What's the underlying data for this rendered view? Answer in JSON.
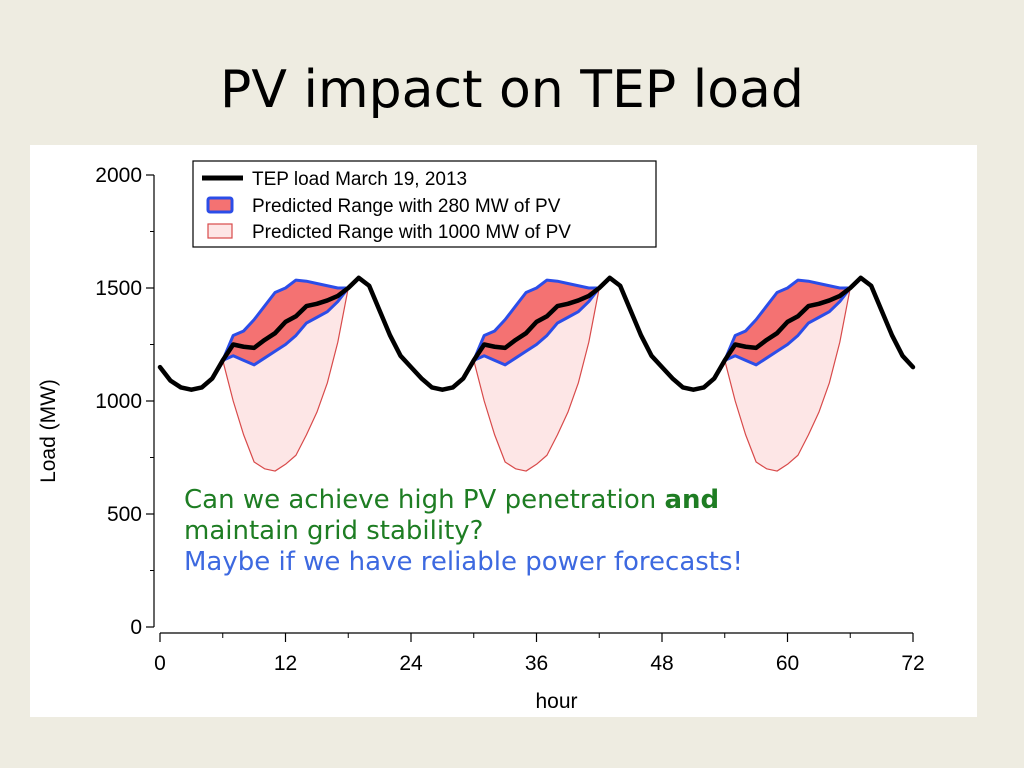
{
  "slide": {
    "title": "PV impact on TEP load",
    "callout": {
      "line1_pre": "Can we achieve high PV penetration ",
      "line1_bold": "and",
      "line2": "maintain grid stability?",
      "line3": "Maybe if we have reliable power forecasts!"
    },
    "colors": {
      "background": "#eeece1",
      "question_text": "#1e7d23",
      "answer_text": "#3d69e0"
    }
  },
  "chart_data": {
    "type": "line",
    "title": "",
    "xlabel": "hour",
    "ylabel": "Load (MW)",
    "xlim": [
      0,
      72
    ],
    "ylim": [
      0,
      2000
    ],
    "xticks": [
      0,
      12,
      24,
      36,
      48,
      60,
      72
    ],
    "yticks": [
      0,
      500,
      1000,
      1500,
      2000
    ],
    "legend_position": "top-left",
    "grid": false,
    "series": [
      {
        "name": "TEP load March 19, 2013",
        "kind": "line",
        "color": "#000000",
        "x": [
          0,
          1,
          2,
          3,
          4,
          5,
          6,
          7,
          8,
          9,
          10,
          11,
          12,
          13,
          14,
          15,
          16,
          17,
          18,
          19,
          20,
          21,
          22,
          23,
          24,
          25,
          26,
          27,
          28,
          29,
          30,
          31,
          32,
          33,
          34,
          35,
          36,
          37,
          38,
          39,
          40,
          41,
          42,
          43,
          44,
          45,
          46,
          47,
          48,
          49,
          50,
          51,
          52,
          53,
          54,
          55,
          56,
          57,
          58,
          59,
          60,
          61,
          62,
          63,
          64,
          65,
          66,
          67,
          68,
          69,
          70,
          71,
          72
        ],
        "y": [
          1150,
          1090,
          1060,
          1050,
          1060,
          1100,
          1180,
          1250,
          1240,
          1235,
          1270,
          1300,
          1350,
          1375,
          1420,
          1430,
          1445,
          1465,
          1500,
          1545,
          1510,
          1400,
          1290,
          1200,
          1150,
          1100,
          1060,
          1050,
          1060,
          1100,
          1180,
          1250,
          1240,
          1235,
          1270,
          1300,
          1350,
          1375,
          1420,
          1430,
          1445,
          1465,
          1500,
          1545,
          1510,
          1400,
          1290,
          1200,
          1150,
          1100,
          1060,
          1050,
          1060,
          1100,
          1180,
          1250,
          1240,
          1235,
          1270,
          1300,
          1350,
          1375,
          1420,
          1430,
          1445,
          1465,
          1500,
          1545,
          1510,
          1400,
          1290,
          1200,
          1150
        ]
      },
      {
        "name": "Predicted Range with 280 MW of PV",
        "kind": "band",
        "fill": "#f47272",
        "stroke": "#2b4de8",
        "periods": [
          0,
          24,
          48
        ],
        "x": [
          6,
          7,
          8,
          9,
          10,
          11,
          12,
          13,
          14,
          15,
          16,
          17,
          18
        ],
        "upper": [
          1180,
          1290,
          1310,
          1360,
          1420,
          1480,
          1500,
          1535,
          1530,
          1520,
          1510,
          1500,
          1500
        ],
        "lower": [
          1180,
          1200,
          1180,
          1160,
          1190,
          1220,
          1250,
          1290,
          1345,
          1370,
          1395,
          1440,
          1500
        ]
      },
      {
        "name": "Predicted Range with 1000 MW of PV",
        "kind": "band",
        "fill": "#fde6e6",
        "stroke": "#d84a4a",
        "periods": [
          0,
          24,
          48
        ],
        "x": [
          6,
          7,
          8,
          9,
          10,
          11,
          12,
          13,
          14,
          15,
          16,
          17,
          18
        ],
        "upper": [
          1180,
          1290,
          1310,
          1360,
          1420,
          1480,
          1500,
          1535,
          1530,
          1520,
          1510,
          1500,
          1500
        ],
        "lower": [
          1180,
          1000,
          850,
          730,
          700,
          690,
          720,
          760,
          850,
          950,
          1080,
          1260,
          1500
        ]
      }
    ]
  }
}
